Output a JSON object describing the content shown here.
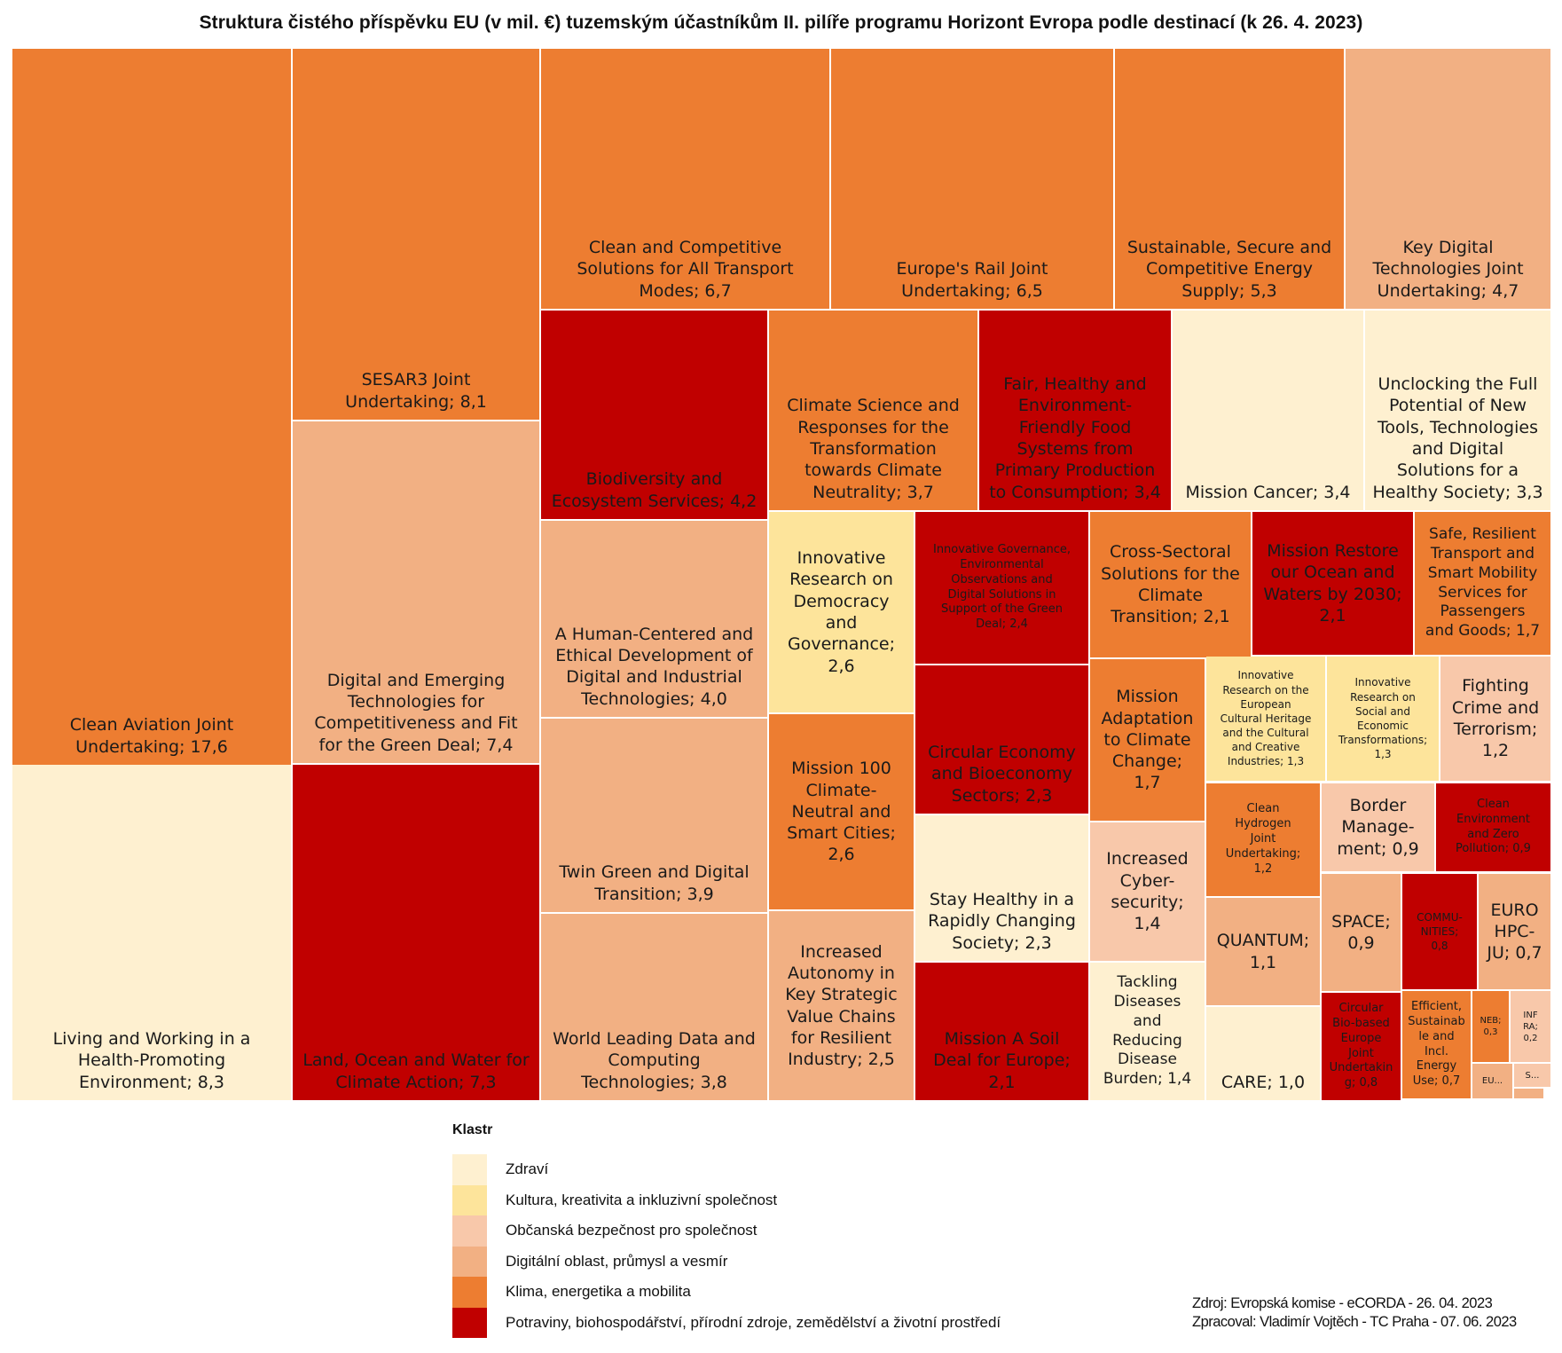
{
  "title": "Struktura čistého příspěvku EU (v mil. €) tuzemským účastníkům II. pilíře programu Horizont Evropa podle destinací (k 26. 4. 2023)",
  "legend": {
    "title": "Klastr",
    "items": [
      {
        "key": "zdravi",
        "label": "Zdraví",
        "color": "#FEF0D0"
      },
      {
        "key": "kultura",
        "label": "Kultura, kreativita a inkluzivní společnost",
        "color": "#FDE49B"
      },
      {
        "key": "bezpecnost",
        "label": "Občanská bezpečnost pro společnost",
        "color": "#F8C8AA"
      },
      {
        "key": "digital",
        "label": "Digitální oblast, průmysl a vesmír",
        "color": "#F2B083"
      },
      {
        "key": "klima",
        "label": "Klima, energetika a mobilita",
        "color": "#ED7D31"
      },
      {
        "key": "potraviny",
        "label": "Potraviny, biohospodářství, přírodní zdroje, zemědělství a životní prostředí",
        "color": "#C00000"
      }
    ]
  },
  "source": {
    "line1": "Zdroj: Evropská komise - eCORDA - 26. 04. 2023",
    "line2": "Zpracoval: Vladimír Vojtěch - TC Praha - 07. 06. 2023"
  },
  "chart_data": {
    "type": "treemap",
    "title": "Struktura čistého příspěvku EU (v mil. €) tuzemským účastníkům II. pilíře programu Horizont Evropa podle destinací (k 26. 4. 2023)",
    "unit": "mil. €",
    "legend_title": "Klastr",
    "legend_position": "bottom",
    "items": [
      {
        "name": "Clean Aviation Joint Undertaking",
        "value": 17.6,
        "cluster": "klima",
        "label": "Clean Aviation Joint\nUndertaking; 17,6"
      },
      {
        "name": "Living and Working in a Health-Promoting Environment",
        "value": 8.3,
        "cluster": "zdravi",
        "label": "Living and Working in a\nHealth-Promoting\nEnvironment; 8,3"
      },
      {
        "name": "SESAR3 Joint Undertaking",
        "value": 8.1,
        "cluster": "klima",
        "label": "SESAR3 Joint\nUndertaking; 8,1"
      },
      {
        "name": "Digital and Emerging Technologies for Competitiveness and Fit for the Green Deal",
        "value": 7.4,
        "cluster": "digital",
        "label": "Digital and Emerging\nTechnologies for\nCompetitiveness and Fit\nfor the Green Deal; 7,4"
      },
      {
        "name": "Land, Ocean and Water for Climate Action",
        "value": 7.3,
        "cluster": "potraviny",
        "label": "Land, Ocean and Water for\nClimate Action; 7,3"
      },
      {
        "name": "Clean and Competitive Solutions for All Transport Modes",
        "value": 6.7,
        "cluster": "klima",
        "label": "Clean and Competitive\nSolutions for All Transport\nModes; 6,7"
      },
      {
        "name": "Europe's Rail Joint Undertaking",
        "value": 6.5,
        "cluster": "klima",
        "label": "Europe's Rail Joint\nUndertaking; 6,5"
      },
      {
        "name": "Sustainable, Secure and Competitive Energy Supply",
        "value": 5.3,
        "cluster": "klima",
        "label": "Sustainable, Secure and\nCompetitive Energy\nSupply; 5,3"
      },
      {
        "name": "Key Digital Technologies Joint Undertaking",
        "value": 4.7,
        "cluster": "digital",
        "label": "Key Digital\nTechnologies Joint\nUndertaking; 4,7"
      },
      {
        "name": "Biodiversity and Ecosystem Services",
        "value": 4.2,
        "cluster": "potraviny",
        "label": "Biodiversity and\nEcosystem Services; 4,2"
      },
      {
        "name": "Climate Science and Responses for the Transformation towards Climate Neutrality",
        "value": 3.7,
        "cluster": "klima",
        "label": "Climate Science and\nResponses for the\nTransformation\ntowards Climate\nNeutrality; 3,7"
      },
      {
        "name": "Fair, Healthy and Environment-Friendly Food Systems from Primary Production to Consumption",
        "value": 3.4,
        "cluster": "potraviny",
        "label": "Fair, Healthy and\nEnvironment-\nFriendly Food\nSystems from\nPrimary Production\nto Consumption; 3,4"
      },
      {
        "name": "Mission Cancer",
        "value": 3.4,
        "cluster": "zdravi",
        "label": "Mission Cancer; 3,4"
      },
      {
        "name": "Unclocking the Full Potential of New Tools, Technologies and Digital Solutions for a Healthy Society",
        "value": 3.3,
        "cluster": "zdravi",
        "label": "Unclocking the Full\nPotential of New\nTools, Technologies\nand Digital\nSolutions for a\nHealthy Society; 3,3"
      },
      {
        "name": "A Human-Centered and Ethical Development of Digital and Industrial Technologies",
        "value": 4.0,
        "cluster": "digital",
        "label": "A Human-Centered and\nEthical Development of\nDigital and Industrial\nTechnologies; 4,0"
      },
      {
        "name": "Twin Green and Digital Transition",
        "value": 3.9,
        "cluster": "digital",
        "label": "Twin Green and Digital\nTransition; 3,9"
      },
      {
        "name": "World Leading Data and Computing Technologies",
        "value": 3.8,
        "cluster": "digital",
        "label": "World Leading Data and\nComputing\nTechnologies; 3,8"
      },
      {
        "name": "Innovative Research on Democracy and Governance",
        "value": 2.6,
        "cluster": "kultura",
        "label": "Innovative\nResearch on\nDemocracy\nand\nGovernance;\n2,6"
      },
      {
        "name": "Mission 100 Climate-Neutral and Smart Cities",
        "value": 2.6,
        "cluster": "klima",
        "label": "Mission 100\nClimate-\nNeutral and\nSmart Cities;\n2,6"
      },
      {
        "name": "Increased Autonomy in Key Strategic Value Chains for Resilient Industry",
        "value": 2.5,
        "cluster": "digital",
        "label": "Increased\nAutonomy in\nKey Strategic\nValue Chains\nfor Resilient\nIndustry; 2,5"
      },
      {
        "name": "Innovative Governance, Environmental Observations and Digital Solutions in Support of the Green Deal",
        "value": 2.4,
        "cluster": "potraviny",
        "label": "Innovative Governance,\nEnvironmental\nObservations and\nDigital Solutions in\nSupport of the Green\nDeal; 2,4"
      },
      {
        "name": "Circular Economy and Bioeconomy Sectors",
        "value": 2.3,
        "cluster": "potraviny",
        "label": "Circular Economy\nand Bioeconomy\nSectors; 2,3"
      },
      {
        "name": "Stay Healthy in a Rapidly Changing Society",
        "value": 2.3,
        "cluster": "zdravi",
        "label": "Stay Healthy in a\nRapidly Changing\nSociety; 2,3"
      },
      {
        "name": "Mission A Soil Deal for Europe",
        "value": 2.1,
        "cluster": "potraviny",
        "label": "Mission A Soil\nDeal for Europe;\n2,1"
      },
      {
        "name": "Cross-Sectoral Solutions for the Climate Transition",
        "value": 2.1,
        "cluster": "klima",
        "label": "Cross-Sectoral\nSolutions for the\nClimate\nTransition; 2,1"
      },
      {
        "name": "Mission Restore our Ocean and Waters by 2030",
        "value": 2.1,
        "cluster": "potraviny",
        "label": "Mission Restore\nour Ocean and\nWaters by 2030;\n2,1"
      },
      {
        "name": "Safe, Resilient Transport and Smart Mobility Services for Passengers and Goods",
        "value": 1.7,
        "cluster": "klima",
        "label": "Safe, Resilient\nTransport and\nSmart Mobility\nServices for\nPassengers\nand Goods; 1,7"
      },
      {
        "name": "Mission Adaptation to Climate Change",
        "value": 1.7,
        "cluster": "klima",
        "label": "Mission\nAdaptation\nto Climate\nChange;\n1,7"
      },
      {
        "name": "Increased Cybersecurity",
        "value": 1.4,
        "cluster": "bezpecnost",
        "label": "Increased\nCyber-\nsecurity;\n1,4"
      },
      {
        "name": "Tackling Diseases and Reducing Disease Burden",
        "value": 1.4,
        "cluster": "zdravi",
        "label": "Tackling\nDiseases\nand\nReducing\nDisease\nBurden; 1,4"
      },
      {
        "name": "Innovative Research on the European Cultural Heritage and the Cultural and Creative Industries",
        "value": 1.3,
        "cluster": "kultura",
        "label": "Innovative\nResearch on the\nEuropean\nCultural Heritage\nand the Cultural\nand Creative\nIndustries; 1,3"
      },
      {
        "name": "Innovative Research on Social and Economic Transformations",
        "value": 1.3,
        "cluster": "kultura",
        "label": "Innovative\nResearch on\nSocial and\nEconomic\nTransformations;\n1,3"
      },
      {
        "name": "Fighting Crime and Terrorism",
        "value": 1.2,
        "cluster": "bezpecnost",
        "label": "Fighting\nCrime and\nTerrorism;\n1,2"
      },
      {
        "name": "Clean Hydrogen Joint Undertaking",
        "value": 1.2,
        "cluster": "klima",
        "label": "Clean\nHydrogen\nJoint\nUndertaking;\n1,2"
      },
      {
        "name": "Border Management",
        "value": 0.9,
        "cluster": "bezpecnost",
        "label": "Border\nManage-\nment; 0,9"
      },
      {
        "name": "Clean Environment and Zero Pollution",
        "value": 0.9,
        "cluster": "potraviny",
        "label": "Clean\nEnvironment\nand Zero\nPollution; 0,9"
      },
      {
        "name": "QUANTUM",
        "value": 1.1,
        "cluster": "digital",
        "label": "QUANTUM;\n1,1"
      },
      {
        "name": "CARE",
        "value": 1.0,
        "cluster": "zdravi",
        "label": "CARE; 1,0"
      },
      {
        "name": "SPACE",
        "value": 0.9,
        "cluster": "digital",
        "label": "SPACE;\n0,9"
      },
      {
        "name": "COMMUNITIES",
        "value": 0.8,
        "cluster": "potraviny",
        "label": "COMMU-\nNITIES;\n0,8"
      },
      {
        "name": "EUROHPC-JU",
        "value": 0.7,
        "cluster": "digital",
        "label": "EURO\nHPC-\nJU; 0,7"
      },
      {
        "name": "Circular Bio-based Europe Joint Undertaking",
        "value": 0.8,
        "cluster": "potraviny",
        "label": "Circular\nBio-based\nEurope\nJoint\nUndertakin\ng; 0,8"
      },
      {
        "name": "Efficient, Sustainable and Incl. Energy Use",
        "value": 0.7,
        "cluster": "klima",
        "label": "Efficient,\nSustainab\nle and\nIncl.\nEnergy\nUse; 0,7"
      },
      {
        "name": "NEB",
        "value": 0.3,
        "cluster": "klima",
        "label": "NEB;\n0,3"
      },
      {
        "name": "INFRA",
        "value": 0.2,
        "cluster": "bezpecnost",
        "label": "INF\nRA;\n0,2"
      },
      {
        "name": "EU...",
        "value": null,
        "cluster": "digital",
        "label": "EU..."
      },
      {
        "name": "S...",
        "value": null,
        "cluster": "bezpecnost",
        "label": "S..."
      },
      {
        "name": "(unlabeled)",
        "value": null,
        "cluster": "digital",
        "label": ""
      }
    ]
  }
}
